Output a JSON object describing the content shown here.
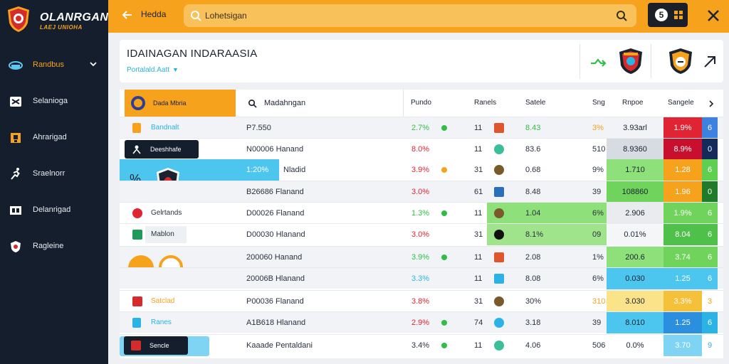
{
  "brand": {
    "name": "OLANRGAN",
    "tagline": "LAEJ UNIOHA"
  },
  "sidebar": {
    "items": [
      {
        "label": "Randbus",
        "icon": "stadium-icon",
        "active": true
      },
      {
        "label": "Selanioga",
        "icon": "shuffle-icon"
      },
      {
        "label": "Ahrarigad",
        "icon": "trophy-icon"
      },
      {
        "label": "Sraelnorr",
        "icon": "runner-icon"
      },
      {
        "label": "Delanrigad",
        "icon": "scoreboard-icon"
      },
      {
        "label": "Ragleine",
        "icon": "badge-icon"
      }
    ]
  },
  "topbar": {
    "label": "Hedda",
    "search_value": "Lohetsigan",
    "notif_count": "5"
  },
  "header": {
    "title": "IDAINAGAN INDARAASIA",
    "subtitle": "Portalald.Aatt"
  },
  "table": {
    "headers": {
      "team": "Dada Mbria",
      "match": "Madahngan",
      "pundo": "Pundo",
      "ranels": "Ranels",
      "satele": "Satele",
      "sng": "Sng",
      "rnpoe": "Rnpoe",
      "sangele": "Sangele"
    },
    "rows": [
      {
        "team": "Bandnalt",
        "match": "P7.550",
        "pct": "2.7%",
        "num": "11",
        "odds": "8.43",
        "pct2": "3%",
        "val": "3.93arl",
        "h1": "1.9%",
        "h2": "6"
      },
      {
        "team": "Deeshhafe",
        "match": "N00006  Hanand",
        "pct": "8.0%",
        "num": "11",
        "odds": "83.6",
        "pct2": "510",
        "val": "8.9360",
        "h1": "8.9%",
        "h2": "0"
      },
      {
        "team": "",
        "match": "1:20%",
        "match2": "Nladid",
        "pct": "3.9%",
        "num": "31",
        "odds": "0.68",
        "pct2": "9%",
        "val": "1.710",
        "h1": "1.28",
        "h2": "6"
      },
      {
        "team": "",
        "match": "B26686  Flanand",
        "pct": "3.0%",
        "num": "61",
        "odds": "8.48",
        "pct2": "39",
        "val": "108860",
        "h1": "1.96",
        "h2": "0"
      },
      {
        "team": "Gelrtands",
        "match": "D00026  Flanand",
        "pct": "1.3%",
        "num": "11",
        "odds": "1.04",
        "pct2": "6%",
        "val": "2.906",
        "h1": "1.9%",
        "h2": "6"
      },
      {
        "team": "Mablon",
        "match": "D00030  Hlanand",
        "pct": "3.0%",
        "num": "31",
        "odds": "8.1%",
        "pct2": "09",
        "val": "0.01%",
        "h1": "8.04",
        "h2": "6"
      },
      {
        "team": "",
        "match": "200060  Hanand",
        "pct": "3.9%",
        "num": "11",
        "odds": "2.08",
        "pct2": "1%",
        "val": "200.6",
        "h1": "3.74",
        "h2": "6"
      },
      {
        "team": "",
        "match": "20006B  Hlanand",
        "pct": "3.3%",
        "num": "11",
        "odds": "8.08",
        "pct2": "6%",
        "val": "0.030",
        "h1": "1.25",
        "h2": "6"
      },
      {
        "team": "Satclad",
        "match": "P00036  Flanand",
        "pct": "3.8%",
        "num": "31",
        "odds": "30%",
        "pct2": "310",
        "val": "3.030",
        "h1": "3.3%",
        "h2": "3"
      },
      {
        "team": "Ranes",
        "match": "A1B618  Hlanand",
        "pct": "2.9%",
        "num": "74",
        "odds": "3.18",
        "pct2": "39",
        "val": "8.010",
        "h1": "1.25",
        "h2": "6"
      },
      {
        "team": "Sencle",
        "match": "Kaaade  Pentaldani",
        "pct": "3.4%",
        "num": "11",
        "odds": "4.06",
        "pct2": "506",
        "val": "0.0%",
        "h1": "3.70",
        "h2": "9"
      }
    ]
  },
  "colors": {
    "accent": "#f6a21c",
    "sidebar": "#141e2c",
    "green": "#7ad35e",
    "red": "#e02434",
    "blue": "#2bb3e6"
  }
}
